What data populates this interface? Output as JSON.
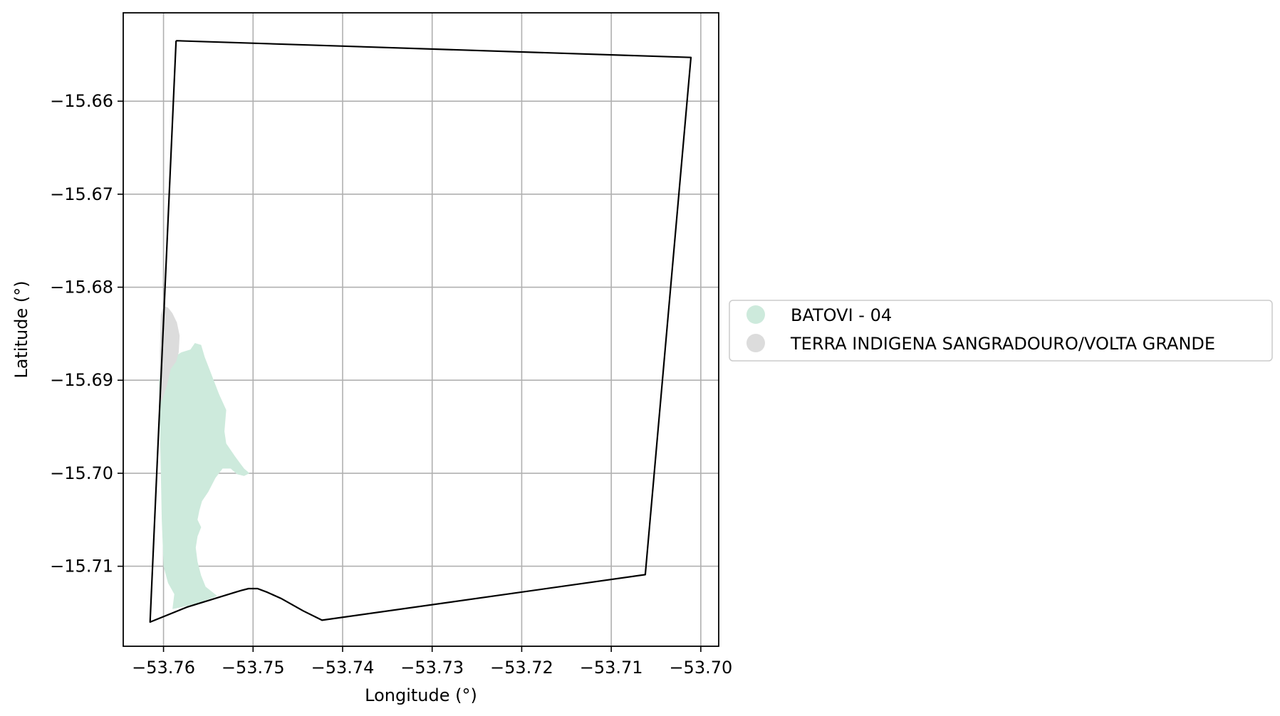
{
  "chart_data": {
    "type": "map",
    "xlabel": "Longitude (°)",
    "ylabel": "Latitude (°)",
    "xlim": [
      -53.7645,
      -53.698
    ],
    "ylim": [
      -15.7186,
      -15.6505
    ],
    "grid": true,
    "xticks": [
      {
        "value": -53.76,
        "label": "−53.76"
      },
      {
        "value": -53.75,
        "label": "−53.75"
      },
      {
        "value": -53.74,
        "label": "−53.74"
      },
      {
        "value": -53.73,
        "label": "−53.73"
      },
      {
        "value": -53.72,
        "label": "−53.72"
      },
      {
        "value": -53.71,
        "label": "−53.71"
      },
      {
        "value": -53.7,
        "label": "−53.70"
      }
    ],
    "yticks": [
      {
        "value": -15.66,
        "label": "−15.66"
      },
      {
        "value": -15.67,
        "label": "−15.67"
      },
      {
        "value": -15.68,
        "label": "−15.68"
      },
      {
        "value": -15.69,
        "label": "−15.69"
      },
      {
        "value": -15.7,
        "label": "−15.70"
      },
      {
        "value": -15.71,
        "label": "−15.71"
      }
    ],
    "boundary": {
      "color": "#000000",
      "coords": [
        [
          -53.7586,
          -15.6535
        ],
        [
          -53.7011,
          -15.6553
        ],
        [
          -53.7062,
          -15.7109
        ],
        [
          -53.7423,
          -15.7158
        ],
        [
          -53.7444,
          -15.7148
        ],
        [
          -53.7468,
          -15.7135
        ],
        [
          -53.7484,
          -15.7128
        ],
        [
          -53.7495,
          -15.7124
        ],
        [
          -53.7505,
          -15.7124
        ],
        [
          -53.7513,
          -15.7126
        ],
        [
          -53.752,
          -15.7128
        ],
        [
          -53.7574,
          -15.7144
        ],
        [
          -53.7615,
          -15.716
        ],
        [
          -53.7586,
          -15.6535
        ]
      ]
    },
    "legend": {
      "placement": "center-right",
      "entries": [
        {
          "label": "BATOVI - 04",
          "color": "#cdeadc"
        },
        {
          "label": "TERRA INDIGENA SANGRADOURO/VOLTA GRANDE",
          "color": "#dcdcdc"
        }
      ]
    },
    "regions": [
      {
        "label": "BATOVI - 04",
        "color": "#cdeadc",
        "coords": [
          [
            -53.7592,
            -15.6877
          ],
          [
            -53.758,
            -15.687
          ],
          [
            -53.757,
            -15.6867
          ],
          [
            -53.7565,
            -15.686
          ],
          [
            -53.7558,
            -15.6862
          ],
          [
            -53.7554,
            -15.6875
          ],
          [
            -53.7546,
            -15.6895
          ],
          [
            -53.7538,
            -15.6915
          ],
          [
            -53.753,
            -15.6932
          ],
          [
            -53.7532,
            -15.6955
          ],
          [
            -53.753,
            -15.6968
          ],
          [
            -53.752,
            -15.6982
          ],
          [
            -53.7514,
            -15.699
          ],
          [
            -53.751,
            -15.6995
          ],
          [
            -53.7504,
            -15.7
          ],
          [
            -53.751,
            -15.7003
          ],
          [
            -53.7518,
            -15.7001
          ],
          [
            -53.7525,
            -15.6995
          ],
          [
            -53.7534,
            -15.6995
          ],
          [
            -53.7542,
            -15.7005
          ],
          [
            -53.755,
            -15.702
          ],
          [
            -53.7557,
            -15.703
          ],
          [
            -53.756,
            -15.704
          ],
          [
            -53.7562,
            -15.705
          ],
          [
            -53.7558,
            -15.7058
          ],
          [
            -53.7562,
            -15.7068
          ],
          [
            -53.7564,
            -15.708
          ],
          [
            -53.7562,
            -15.7095
          ],
          [
            -53.7558,
            -15.711
          ],
          [
            -53.7553,
            -15.7122
          ],
          [
            -53.7545,
            -15.7128
          ],
          [
            -53.754,
            -15.7132
          ],
          [
            -53.7562,
            -15.714
          ],
          [
            -53.758,
            -15.7144
          ],
          [
            -53.759,
            -15.7146
          ],
          [
            -53.7588,
            -15.713
          ],
          [
            -53.7595,
            -15.7118
          ],
          [
            -53.76,
            -15.71
          ],
          [
            -53.7602,
            -15.705
          ],
          [
            -53.7603,
            -15.7
          ],
          [
            -53.7604,
            -15.695
          ],
          [
            -53.7605,
            -15.69
          ],
          [
            -53.76,
            -15.6885
          ]
        ]
      },
      {
        "label": "TERRA INDIGENA SANGRADOURO/VOLTA GRANDE",
        "color": "#dcdcdc",
        "coords": [
          [
            -53.76,
            -15.682
          ],
          [
            -53.7595,
            -15.6822
          ],
          [
            -53.759,
            -15.6828
          ],
          [
            -53.7585,
            -15.6838
          ],
          [
            -53.7582,
            -15.6852
          ],
          [
            -53.7583,
            -15.687
          ],
          [
            -53.7586,
            -15.688
          ],
          [
            -53.7592,
            -15.6888
          ],
          [
            -53.7596,
            -15.6905
          ],
          [
            -53.7601,
            -15.692
          ],
          [
            -53.7604,
            -15.6925
          ],
          [
            -53.7604,
            -15.687
          ],
          [
            -53.7603,
            -15.683
          ]
        ]
      }
    ]
  }
}
